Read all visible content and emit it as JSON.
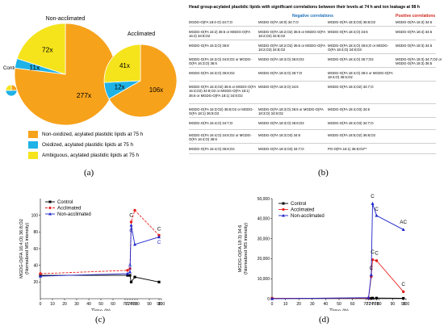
{
  "colors": {
    "orange": "#f7a21b",
    "blue": "#1eb2e6",
    "yellow": "#f5e31c",
    "control_line": "#000000",
    "acclimated_line": "#e8211d",
    "nonacclimated_line": "#1c24c8",
    "neg_head": "#1e6fb8",
    "pos_head": "#d0261c"
  },
  "panel_a": {
    "label": "(a)",
    "pie_titles": {
      "non_acclimated": "Non-acclimated",
      "acclimated": "Acclimated",
      "control": "Control"
    },
    "legend": [
      {
        "color": "#f7a21b",
        "text": "Non-oxidized, acylated plastidic lipids at 75 h"
      },
      {
        "color": "#1eb2e6",
        "text": "Oxidized, acylated plastidic lipids at 75 h"
      },
      {
        "color": "#f5e31c",
        "text": "Ambiguous, acylated plastidic lipids at 75 h"
      }
    ]
  },
  "panel_b": {
    "label": "(b)",
    "title": "Head group-acylated plastidic lipids with significant correlations between their levels at 74 h and ion leakage at 98 h",
    "neg_header": "Negative correlations",
    "pos_header": "Positive correlations",
    "rows": [
      [
        "DGDG-O(FA 18:4-O) 34:7;O",
        "MGDG-O(FA 18:0) 34:7;O",
        "MGDG-O(FA 18:3;O3) 36:8;O2",
        "MGDG-O(FA 16:3) 34:6"
      ],
      [
        "MGDG-O(FA 16:2) 36:6 or MGDG-O(FA 16:2) 34:8;O2",
        "MGDG-O(FA 18:2;O2) 36:6 or MGDG-O(FA 18:2;O2) 34:8;O2",
        "MGDG-O(FA 18:4;O) 34:6",
        "MGDG-O(FA 18:4) 34:6"
      ],
      [
        "MGDG-O(FA 16:3;O) 36:8",
        "MGDG-O(FA 18:2;O2) 36:6 or MGDG-O(FA 18:2;O3) 34:8;O2",
        "MGDG-O(FA 18:4;O) 36:6;O or MGDG-O(FA 18:4;O) 34:8;O3",
        "MGDG-O(FA 18:3) 34:6"
      ],
      [
        "MGDG-O(FA 16:3;O) 34:8;O2 or MGDG-O(FA 16:3;O) 36:6",
        "MGDG-O(FA 18:3;O) 36:8;O2",
        "MGDG-O(FA 18:4;O) 36:7;O2",
        "MGDG-O(FA 18:3) 34:7;O2 or MGDG-O(FA 18:3) 36:5"
      ],
      [
        "MGDG-O(FA 16:3;O) 36:8;O2",
        "MGDG-O(FA 18:3;O) 36:7;O",
        "MGDG-O(FA 18:4;O) 38:4 or MGDG-O(FA 18:4;O) 36:6;O2",
        ""
      ],
      [
        "MGDG-O(FA 16:3;O2) 36:6 or MGDG-O(FA 16:3;O2) 34:8;O2 or MGDG-O(FA 18:1) 36:6 or MGDG-O(FA 18:1) 34:8;O2",
        "MGDG-O(FA 18:3;O) 34:6",
        "MGDG-O(FA 18:4;O2) 34:7;O",
        ""
      ],
      [
        "MGDG-O(FA 16:3;O2) 36:8;O2 or MGDG-O(FA 18:1) 36:8;O2",
        "MGDG-O(FA 18:3;O) 36:6 or MGDG-O(FA 18:3;O) 34:8;O2",
        "MGDG-O(FA 18:4;O3) 34:6",
        ""
      ],
      [
        "MGDG-O(FA 16:4;O) 34:7;O",
        "MGDG-O(FA 18:3;O) 36:8;O2",
        "MGDG-O(FA 18:4;O3) 34:7;O",
        ""
      ],
      [
        "MGDG-O(FA 16:4;O) 34:8;O2 or MGDG-O(FA 16:4;O) 36:6",
        "MGDG-O(FA 18:3;O3) 34:6",
        "MGDG-O(FA 18:5;O2) 36:8;O2",
        ""
      ],
      [
        "MGDG-O(FA 16:4;O) 36:8;O2",
        "MGDG-O(FA 18:3;O3) 34:7;O",
        "PG-O(FA 16:1) 36:8;O2**",
        ""
      ]
    ]
  },
  "panel_c": {
    "label": "(c)"
  },
  "panel_d": {
    "label": "(d)"
  },
  "chart_data": [
    {
      "type": "pie",
      "title": "Non-acclimated",
      "categories": [
        "Non-oxidized, acylated plastidic lipids at 75 h",
        "Oxidized, acylated plastidic lipids at 75 h",
        "Ambiguous, acylated plastidic lipids at 75 h"
      ],
      "values": [
        277,
        11,
        72
      ],
      "labels": [
        "277x",
        "11x",
        "72x"
      ],
      "colors": [
        "#f7a21b",
        "#1eb2e6",
        "#f5e31c"
      ]
    },
    {
      "type": "pie",
      "title": "Acclimated",
      "categories": [
        "Non-oxidized, acylated plastidic lipids at 75 h",
        "Oxidized, acylated plastidic lipids at 75 h",
        "Ambiguous, acylated plastidic lipids at 75 h"
      ],
      "values": [
        106,
        12,
        41
      ],
      "labels": [
        "106x",
        "12x",
        "41x"
      ],
      "colors": [
        "#f7a21b",
        "#1eb2e6",
        "#f5e31c"
      ]
    },
    {
      "type": "pie",
      "title": "Control",
      "categories": [
        "Non-oxidized",
        "Oxidized",
        "Ambiguous"
      ],
      "values": [
        25,
        50,
        25
      ],
      "colors": [
        "#f7a21b",
        "#1eb2e6",
        "#f5e31c"
      ]
    },
    {
      "type": "line",
      "title": "",
      "xlabel": "Time (h)",
      "ylabel": "MGDG-O(FA 16:4;O) 36:8;O2",
      "ylabel2": "(Normalized MS intensity)",
      "xlim": [
        0,
        100
      ],
      "ylim": [
        0,
        120
      ],
      "xticks": [
        0,
        10,
        20,
        30,
        40,
        50,
        60,
        70,
        72,
        74,
        76,
        78,
        80,
        90,
        98,
        100
      ],
      "xtick_labels": [
        "0",
        "10",
        "20",
        "30",
        "40",
        "50",
        "60",
        "70",
        "72",
        "74",
        "76",
        "78",
        "80",
        "90",
        "98",
        "100"
      ],
      "yticks": [
        20,
        40,
        60,
        80,
        100
      ],
      "yticklabels": [
        "20",
        "40",
        "60",
        "80",
        "100"
      ],
      "legend_position": "top-left",
      "series": [
        {
          "name": "Control",
          "color": "#000000",
          "marker": "square",
          "dashed": false,
          "x": [
            0,
            72,
            74,
            75,
            78,
            98
          ],
          "y": [
            28,
            28,
            28,
            20,
            26,
            20
          ]
        },
        {
          "name": "Acclimated",
          "color": "#e8211d",
          "marker": "circle",
          "dashed": true,
          "x": [
            0,
            72,
            74,
            75,
            78,
            98
          ],
          "y": [
            30,
            34,
            36,
            92,
            106,
            76
          ]
        },
        {
          "name": "Non-acclimated",
          "color": "#1c24c8",
          "marker": "triangle",
          "dashed": false,
          "x": [
            0,
            72,
            74,
            75,
            78,
            98
          ],
          "y": [
            27,
            30,
            32,
            88,
            65,
            74
          ]
        }
      ],
      "annotations": [
        {
          "text": "C",
          "x": 75,
          "y": 98,
          "color": "#000000"
        },
        {
          "text": "C",
          "x": 75,
          "y": 80,
          "color": "#1c24c8"
        },
        {
          "text": "A",
          "x": 74,
          "y": 38,
          "color": "#1c24c8"
        },
        {
          "text": "C",
          "x": 98,
          "y": 82,
          "color": "#000000"
        },
        {
          "text": "C",
          "x": 98,
          "y": 66,
          "color": "#1c24c8"
        }
      ]
    },
    {
      "type": "line",
      "title": "",
      "xlabel": "Time (h)",
      "ylabel": "MGDG-O(FA 18:3) 34:6",
      "ylabel2": "(Normalized MS intensity)",
      "xlim": [
        0,
        100
      ],
      "ylim": [
        0,
        50000
      ],
      "xticks": [
        0,
        10,
        20,
        30,
        40,
        50,
        60,
        70,
        72,
        74,
        76,
        78,
        80,
        90,
        98,
        100
      ],
      "xtick_labels": [
        "0",
        "10",
        "20",
        "30",
        "40",
        "50",
        "60",
        "70",
        "72",
        "74",
        "76",
        "78",
        "80",
        "90",
        "98",
        "100"
      ],
      "yticks": [
        0,
        10000,
        20000,
        30000,
        40000,
        50000
      ],
      "yticklabels": [
        "0",
        "10,000",
        "20,000",
        "30,000",
        "40,000",
        "50,000"
      ],
      "legend_position": "top-left",
      "series": [
        {
          "name": "Control",
          "color": "#000000",
          "marker": "square",
          "dashed": false,
          "x": [
            0,
            72,
            74,
            75,
            78,
            98
          ],
          "y": [
            200,
            200,
            200,
            300,
            300,
            200
          ]
        },
        {
          "name": "Acclimated",
          "color": "#e8211d",
          "marker": "circle",
          "dashed": false,
          "x": [
            0,
            72,
            74,
            75,
            78,
            98
          ],
          "y": [
            200,
            300,
            11000,
            19500,
            19000,
            3500
          ]
        },
        {
          "name": "Non-acclimated",
          "color": "#1c24c8",
          "marker": "triangle",
          "dashed": false,
          "x": [
            0,
            72,
            74,
            75,
            78,
            98
          ],
          "y": [
            0,
            500,
            12000,
            47500,
            41500,
            34500
          ]
        }
      ],
      "annotations": [
        {
          "text": "C",
          "x": 75,
          "y": 50500,
          "color": "#000000"
        },
        {
          "text": "C",
          "x": 78,
          "y": 44000,
          "color": "#000000"
        },
        {
          "text": "C",
          "x": 74,
          "y": 14500,
          "color": "#000000"
        },
        {
          "text": "C",
          "x": 75,
          "y": 22500,
          "color": "#000000"
        },
        {
          "text": "C",
          "x": 78,
          "y": 22000,
          "color": "#000000"
        },
        {
          "text": "AC",
          "x": 98,
          "y": 37500,
          "color": "#000000"
        },
        {
          "text": "C",
          "x": 98,
          "y": 6500,
          "color": "#000000"
        }
      ]
    }
  ]
}
